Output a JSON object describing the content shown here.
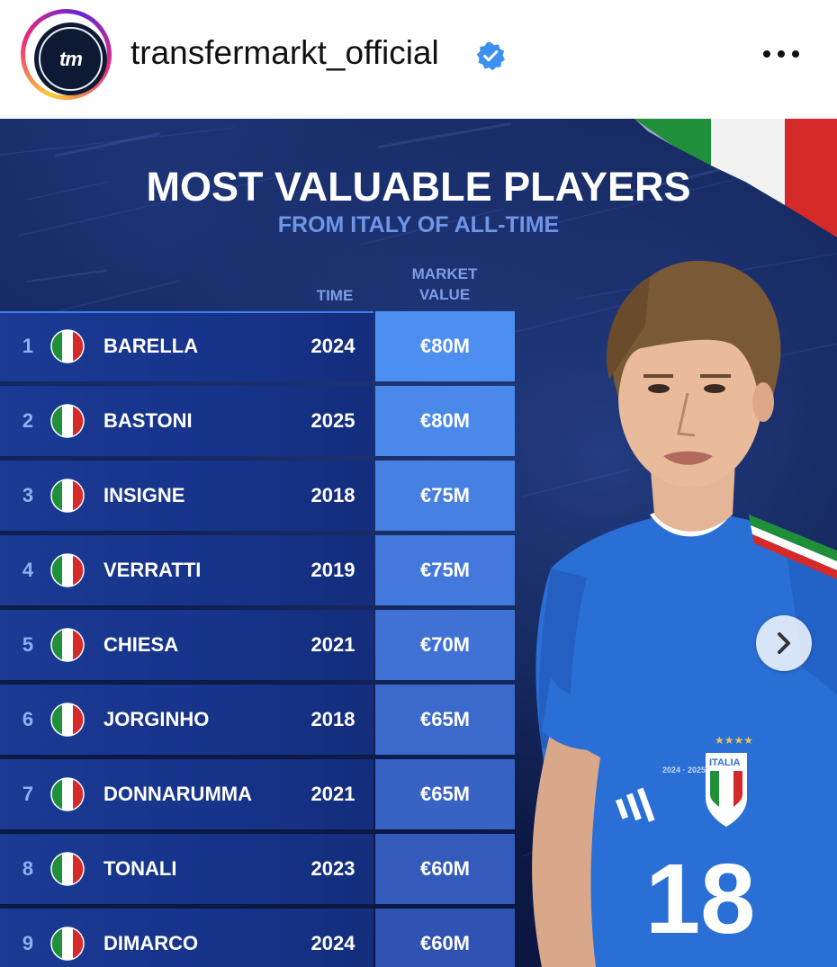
{
  "header": {
    "username": "transfermarkt_official",
    "avatar_text": "tm",
    "verified_icon": "verified-badge-icon",
    "more_icon": "more-options-icon"
  },
  "post": {
    "title": "MOST VALUABLE PLAYERS",
    "subtitle": "FROM ITALY OF ALL-TIME",
    "columns": {
      "time": "TIME",
      "market_value_line1": "MARKET",
      "market_value_line2": "VALUE"
    },
    "rows": [
      {
        "rank": "1",
        "name": "BARELLA",
        "year": "2024",
        "value": "€80M",
        "value_color": "#4d8ff0"
      },
      {
        "rank": "2",
        "name": "BASTONI",
        "year": "2025",
        "value": "€80M",
        "value_color": "#4a88ea"
      },
      {
        "rank": "3",
        "name": "INSIGNE",
        "year": "2018",
        "value": "€75M",
        "value_color": "#4680e3"
      },
      {
        "rank": "4",
        "name": "VERRATTI",
        "year": "2019",
        "value": "€75M",
        "value_color": "#4379dc"
      },
      {
        "rank": "5",
        "name": "CHIESA",
        "year": "2021",
        "value": "€70M",
        "value_color": "#3f72d4"
      },
      {
        "rank": "6",
        "name": "JORGINHO",
        "year": "2018",
        "value": "€65M",
        "value_color": "#3b6acc"
      },
      {
        "rank": "7",
        "name": "DONNARUMMA",
        "year": "2021",
        "value": "€65M",
        "value_color": "#3862c4"
      },
      {
        "rank": "8",
        "name": "TONALI",
        "year": "2023",
        "value": "€60M",
        "value_color": "#345abb"
      },
      {
        "rank": "9",
        "name": "DIMARCO",
        "year": "2024",
        "value": "€60M",
        "value_color": "#3052b3"
      }
    ],
    "player_shirt_number": "18",
    "player_badge_text": "ITALIA",
    "next_icon": "chevron-right-icon"
  },
  "colors": {
    "background": "#0d1d4c",
    "accent_blue": "#6f95e6",
    "shirt_blue": "#2a6fd6",
    "italy_green": "#1f8f3a",
    "italy_red": "#d42a2a"
  }
}
